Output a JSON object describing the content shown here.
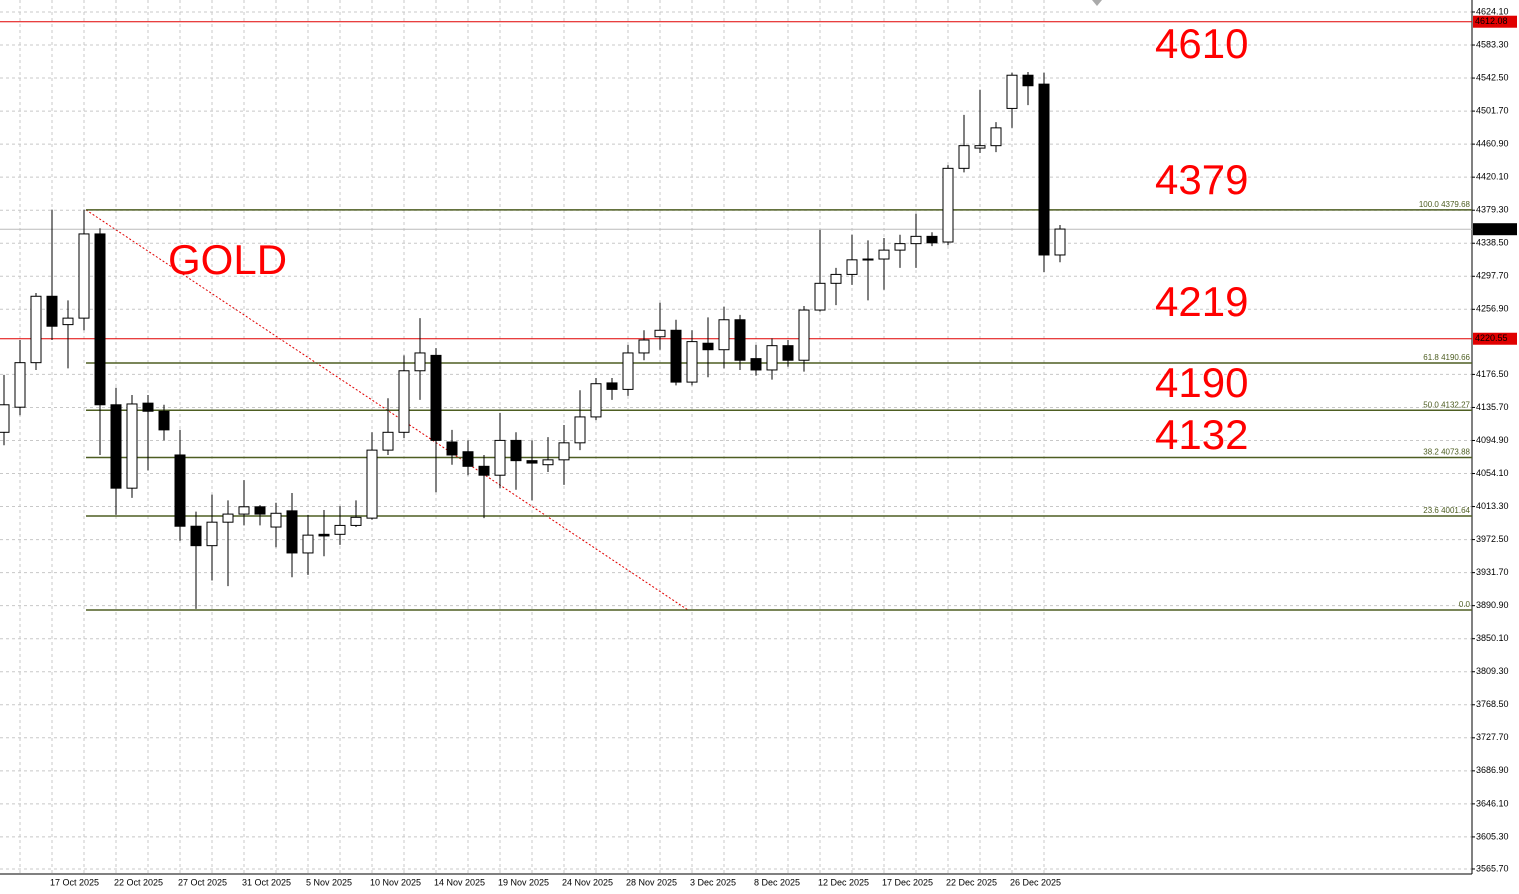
{
  "chart_data": {
    "type": "candlestick",
    "categories": [
      null,
      null,
      null,
      "17 Oct 2025",
      null,
      null,
      null,
      "22 Oct 2025",
      null,
      null,
      null,
      "27 Oct 2025",
      null,
      null,
      null,
      "31 Oct 2025",
      null,
      null,
      null,
      "5 Nov 2025",
      null,
      null,
      null,
      "10 Nov 2025",
      null,
      null,
      null,
      "14 Nov 2025",
      null,
      null,
      null,
      "19 Nov 2025",
      null,
      null,
      null,
      "24 Nov 2025",
      null,
      null,
      null,
      "28 Nov 2025",
      null,
      null,
      null,
      "3 Dec 2025",
      null,
      null,
      null,
      "8 Dec 2025",
      null,
      null,
      null,
      "12 Dec 2025",
      null,
      null,
      null,
      "17 Dec 2025",
      null,
      null,
      null,
      "22 Dec 2025",
      null,
      null,
      null,
      "26 Dec 2025",
      null,
      null,
      null
    ],
    "open": [
      4105,
      4136,
      4191,
      4273,
      4238,
      4246,
      4350,
      4139,
      4036,
      4141,
      4131,
      4077,
      3989,
      3965,
      3994,
      4004,
      4013,
      3988,
      4008,
      3956,
      3979,
      3979,
      3990,
      3999,
      4083,
      4105,
      4181,
      4200,
      4093,
      4081,
      4063,
      4052,
      4095,
      4070,
      4065,
      4071,
      4092,
      4124,
      4166,
      4158,
      4203,
      4223,
      4231,
      4167,
      4215,
      4207,
      4244,
      4196,
      4182,
      4212,
      4194,
      4256,
      4289,
      4300,
      4318,
      4319,
      4330,
      4338,
      4347,
      4340,
      4431,
      4456,
      4459,
      4505,
      4546,
      4535,
      4324
    ],
    "high": [
      4176,
      4219,
      4277,
      4380,
      4268,
      4380,
      4357,
      4160,
      4151,
      4151,
      4139,
      4108,
      4007,
      4028,
      4021,
      4046,
      4015,
      4018,
      4030,
      4003,
      4009,
      4014,
      4021,
      4105,
      4147,
      4200,
      4246,
      4209,
      4108,
      4095,
      4077,
      4129,
      4105,
      4095,
      4099,
      4114,
      4157,
      4172,
      4172,
      4213,
      4231,
      4265,
      4244,
      4231,
      4247,
      4260,
      4250,
      4213,
      4221,
      4219,
      4261,
      4355,
      4308,
      4349,
      4342,
      4345,
      4349,
      4375,
      4352,
      4435,
      4497,
      4528,
      4488,
      4549,
      4550,
      4549,
      4361
    ],
    "low": [
      4089,
      4126,
      4182,
      4219,
      4184,
      4231,
      4077,
      4003,
      4024,
      4058,
      4095,
      3971,
      3887,
      3922,
      3915,
      3990,
      3990,
      3963,
      3926,
      3929,
      3952,
      3966,
      3988,
      3997,
      4077,
      4098,
      4145,
      4031,
      4065,
      4052,
      3999,
      4036,
      4034,
      4021,
      4056,
      4040,
      4083,
      4120,
      4145,
      4150,
      4194,
      4207,
      4163,
      4163,
      4173,
      4184,
      4182,
      4175,
      4170,
      4186,
      4180,
      4254,
      4262,
      4287,
      4268,
      4281,
      4308,
      4308,
      4335,
      4336,
      4426,
      4450,
      4451,
      4481,
      4509,
      4303,
      4315
    ],
    "close": [
      4139,
      4191,
      4273,
      4236,
      4246,
      4350,
      4139,
      4036,
      4140,
      4131,
      4108,
      3989,
      3965,
      3994,
      4004,
      4013,
      4004,
      4005,
      3956,
      3978,
      3977,
      3990,
      4000,
      4083,
      4105,
      4181,
      4203,
      4095,
      4077,
      4063,
      4052,
      4095,
      4070,
      4067,
      4071,
      4092,
      4124,
      4165,
      4158,
      4203,
      4219,
      4231,
      4167,
      4217,
      4207,
      4244,
      4194,
      4182,
      4212,
      4194,
      4256,
      4289,
      4300,
      4318,
      4319,
      4330,
      4338,
      4347,
      4339,
      4431,
      4459,
      4459,
      4481,
      4546,
      4533,
      4324,
      4356
    ],
    "up_color": "#ffffff",
    "down_color": "#000000",
    "ylim": [
      3559.5,
      4638.9
    ],
    "yticks": [
      {
        "value": 4624.1,
        "label": "4624.10"
      },
      {
        "value": 4583.3,
        "label": "4583.30"
      },
      {
        "value": 4542.5,
        "label": "4542.50"
      },
      {
        "value": 4501.7,
        "label": "4501.70"
      },
      {
        "value": 4460.9,
        "label": "4460.90"
      },
      {
        "value": 4420.1,
        "label": "4420.10"
      },
      {
        "value": 4379.3,
        "label": "4379.30"
      },
      {
        "value": 4338.5,
        "label": "4338.50"
      },
      {
        "value": 4297.7,
        "label": "4297.70"
      },
      {
        "value": 4256.9,
        "label": "4256.90"
      },
      {
        "value": 4176.5,
        "label": "4176.50"
      },
      {
        "value": 4135.7,
        "label": "4135.70"
      },
      {
        "value": 4094.9,
        "label": "4094.90"
      },
      {
        "value": 4054.1,
        "label": "4054.10"
      },
      {
        "value": 4013.3,
        "label": "4013.30"
      },
      {
        "value": 3972.5,
        "label": "3972.50"
      },
      {
        "value": 3931.7,
        "label": "3931.70"
      },
      {
        "value": 3890.9,
        "label": "3890.90"
      },
      {
        "value": 3850.1,
        "label": "3850.10"
      },
      {
        "value": 3809.3,
        "label": "3809.30"
      },
      {
        "value": 3768.5,
        "label": "3768.50"
      },
      {
        "value": 3727.7,
        "label": "3727.70"
      },
      {
        "value": 3686.9,
        "label": "3686.90"
      },
      {
        "value": 3646.1,
        "label": "3646.10"
      },
      {
        "value": 3605.3,
        "label": "3605.30"
      },
      {
        "value": 3565.7,
        "label": "3565.70"
      }
    ],
    "grid": true,
    "price_lines": [
      {
        "value": 4612.08,
        "color": "#e00000"
      },
      {
        "value": 4220.55,
        "color": "#e00000"
      },
      {
        "value": 4355.83,
        "color": "#000000"
      }
    ],
    "fib_levels": [
      {
        "value": 4379.68,
        "label": "100.0 4379.68"
      },
      {
        "value": 4190.66,
        "label": "61.8 4190.66"
      },
      {
        "value": 4132.27,
        "label": "50.0 4132.27"
      },
      {
        "value": 4073.88,
        "label": "38.2 4073.88"
      },
      {
        "value": 4001.64,
        "label": "23.6 4001.64"
      },
      {
        "value": 3885.5,
        "label": "0.0"
      }
    ],
    "fib_color": "#4e5e22",
    "annotations": [
      "GOLD",
      "4610",
      "4379",
      "4219",
      "4190",
      "4132"
    ],
    "annotation_color": "#ff0000"
  }
}
